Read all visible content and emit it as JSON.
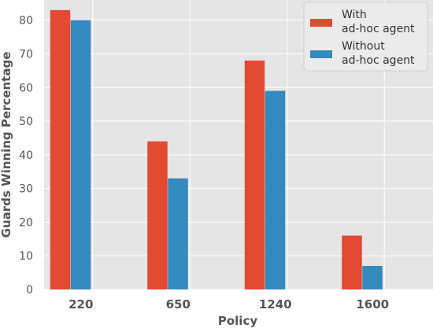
{
  "chart_data": {
    "type": "bar",
    "title": "",
    "xlabel": "Policy",
    "ylabel": "Guards Winning Percentage",
    "categories": [
      "220",
      "650",
      "1240",
      "1600"
    ],
    "series": [
      {
        "name": "With\nad-hoc agent",
        "name_lines": [
          "With",
          "ad-hoc agent"
        ],
        "values": [
          83,
          44,
          68,
          16
        ],
        "color": "#E24A33"
      },
      {
        "name": "Without\nad-hoc agent",
        "name_lines": [
          "Without",
          "ad-hoc agent"
        ],
        "values": [
          80,
          33,
          59,
          7
        ],
        "color": "#348ABD"
      }
    ],
    "yticks": [
      "0",
      "10",
      "20",
      "30",
      "40",
      "50",
      "60",
      "70",
      "80"
    ],
    "ylim": [
      0,
      86
    ],
    "grid": true,
    "legend_position": "top-right",
    "background_color": "#E5E5E5",
    "grid_color": "#FFFFFF"
  }
}
